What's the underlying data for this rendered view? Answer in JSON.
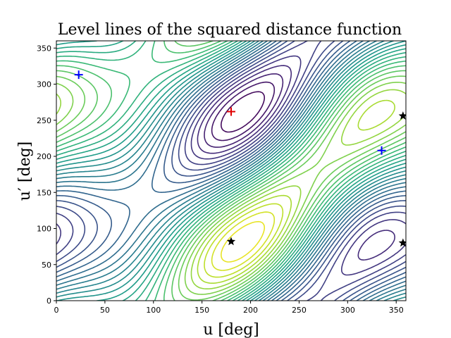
{
  "chart_data": {
    "type": "contour",
    "title": "Level lines of the squared distance function",
    "xlabel": "u [deg]",
    "ylabel": "u′ [deg]",
    "xlim": [
      0,
      360
    ],
    "ylim": [
      0,
      360
    ],
    "xticks": [
      0,
      50,
      100,
      150,
      200,
      250,
      300,
      350
    ],
    "yticks": [
      0,
      50,
      100,
      150,
      200,
      250,
      300,
      350
    ],
    "grid": false,
    "colormap": "viridis",
    "colors": {
      "maximum_marker": "#e00000",
      "minimum_marker": "#0000ff",
      "saddle_marker": "#000000"
    },
    "markers": [
      {
        "kind": "maximum",
        "symbol": "+",
        "x": 180,
        "y": 262
      },
      {
        "kind": "minimum",
        "symbol": "+",
        "x": 23,
        "y": 313
      },
      {
        "kind": "minimum",
        "symbol": "+",
        "x": 335,
        "y": 208
      },
      {
        "kind": "saddle",
        "symbol": "star",
        "x": 180,
        "y": 82
      },
      {
        "kind": "saddle",
        "symbol": "star",
        "x": 357,
        "y": 256
      },
      {
        "kind": "saddle",
        "symbol": "star",
        "x": 357,
        "y": 80
      }
    ]
  }
}
